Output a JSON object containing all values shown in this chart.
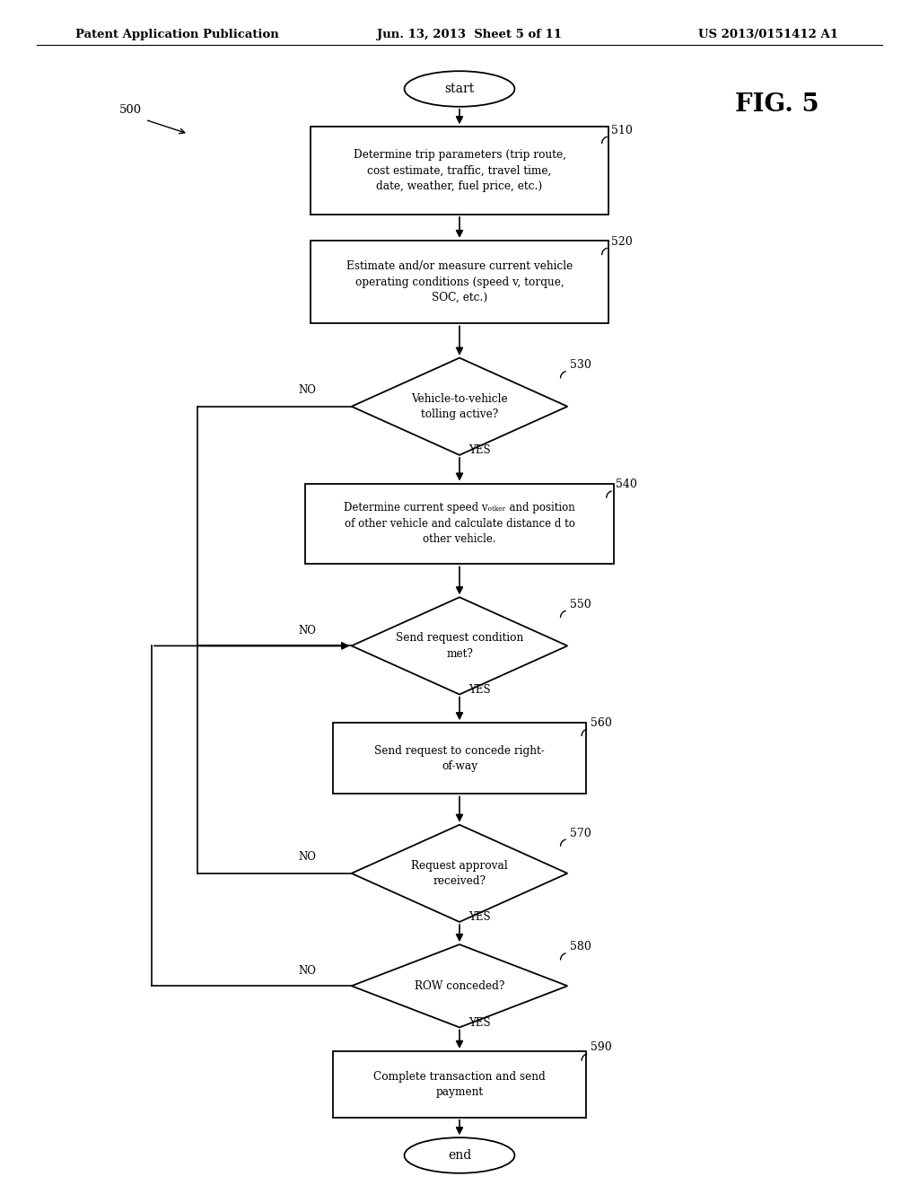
{
  "page_header_left": "Patent Application Publication",
  "page_header_mid": "Jun. 13, 2013  Sheet 5 of 11",
  "page_header_right": "US 2013/0151412 A1",
  "fig_label": "FIG. 5",
  "diagram_label": "500",
  "background_color": "#ffffff"
}
